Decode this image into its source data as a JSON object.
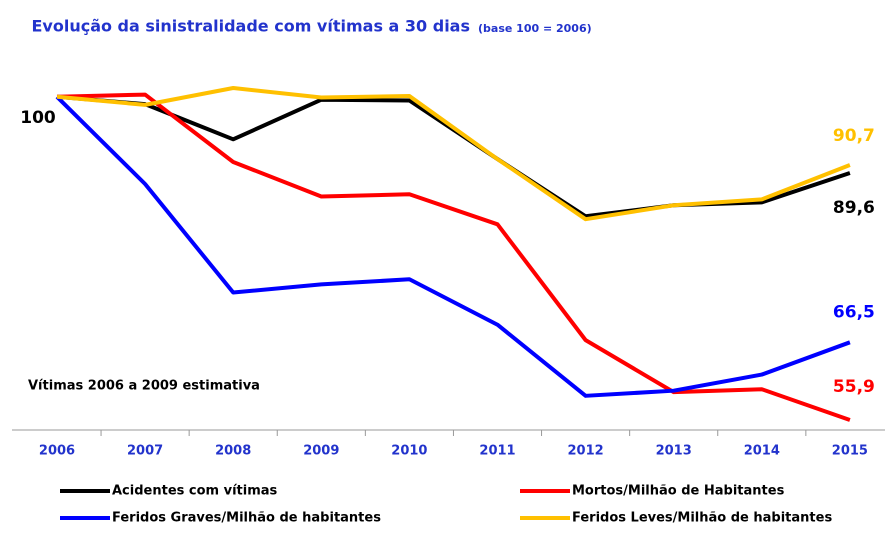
{
  "chart_data": {
    "type": "line",
    "title": "Evolução da sinistralidade  com vítimas a 30 dias",
    "subtitle": "(base 100 = 2006)",
    "annotation": "Vítimas 2006 a 2009 estimativa",
    "categories": [
      "2006",
      "2007",
      "2008",
      "2009",
      "2010",
      "2011",
      "2012",
      "2013",
      "2014",
      "2015"
    ],
    "series": [
      {
        "name": "Acidentes com vítimas",
        "color": "#000000",
        "values": [
          100,
          99,
          94.2,
          99.6,
          99.5,
          91.5,
          83.7,
          85.2,
          85.6,
          89.6
        ],
        "value_labels": [
          "100",
          null,
          null,
          null,
          null,
          null,
          null,
          null,
          null,
          "89,6"
        ]
      },
      {
        "name": "Mortos/Milhão de Habitantes",
        "color": "#ff0000",
        "values": [
          100,
          100.3,
          91.1,
          86.4,
          86.7,
          82.6,
          66.8,
          59.7,
          60.1,
          55.9
        ],
        "value_labels": [
          null,
          null,
          null,
          null,
          null,
          null,
          null,
          null,
          null,
          "55,9"
        ]
      },
      {
        "name": "Feridos Graves/Milhão de habitantes",
        "color": "#0000ff",
        "values": [
          100,
          88.1,
          73.3,
          74.4,
          75.1,
          68.9,
          59.2,
          59.9,
          62.1,
          66.5
        ],
        "value_labels": [
          null,
          null,
          null,
          null,
          null,
          null,
          null,
          null,
          null,
          "66,5"
        ]
      },
      {
        "name": "Feridos Leves/Milhão de habitantes",
        "color": "#ffc000",
        "values": [
          100,
          98.9,
          101.2,
          99.9,
          100.1,
          91.5,
          83.3,
          85.2,
          86,
          90.7
        ],
        "value_labels": [
          null,
          null,
          null,
          null,
          null,
          null,
          null,
          null,
          null,
          "90,7"
        ]
      }
    ]
  }
}
